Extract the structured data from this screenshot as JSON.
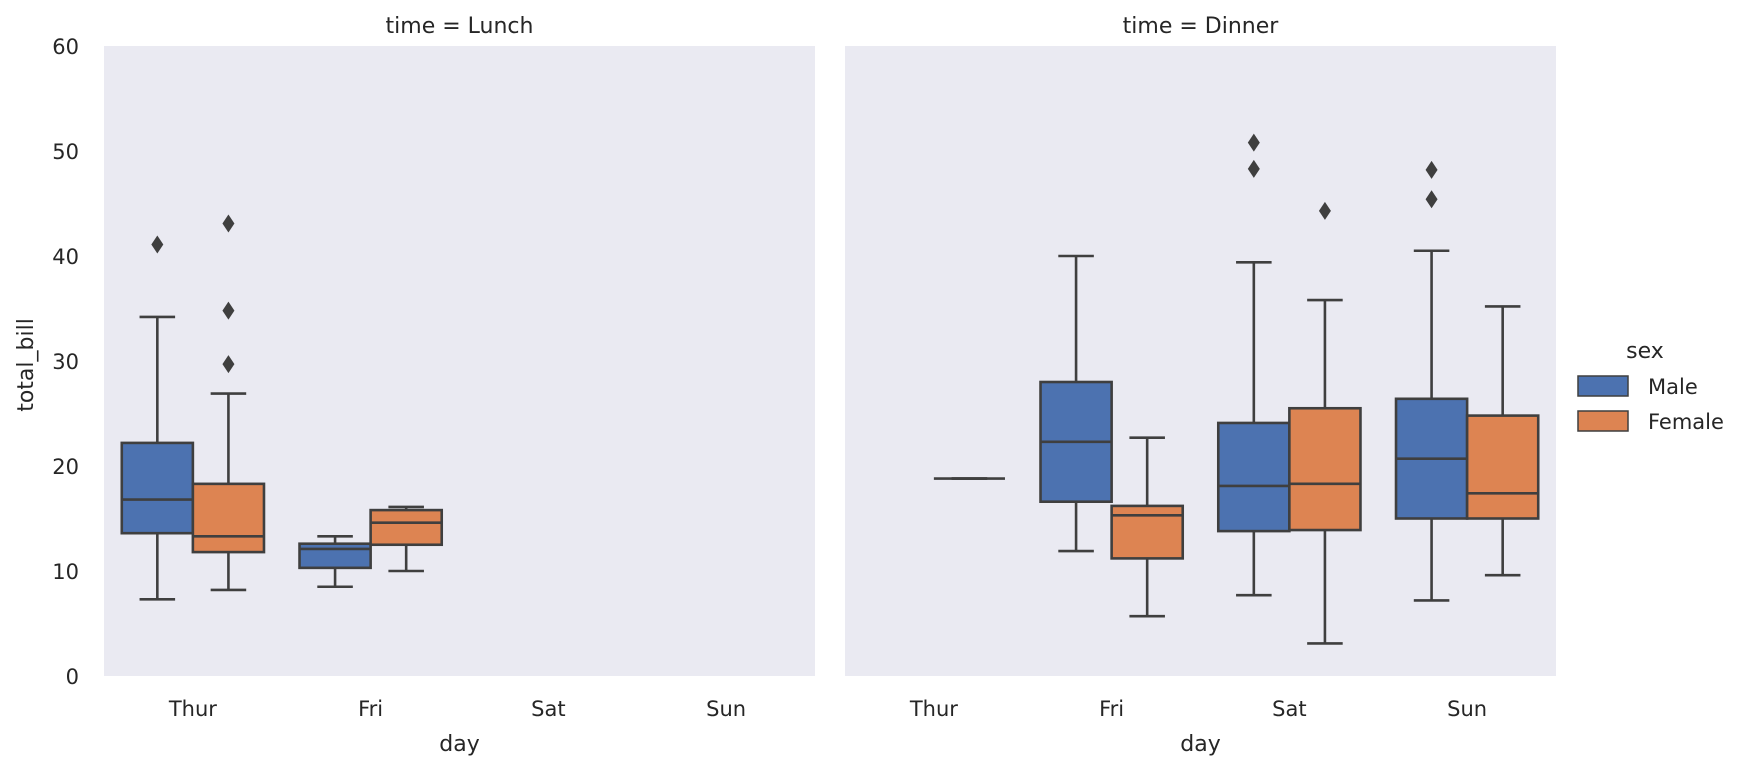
{
  "chart_data": {
    "type": "box",
    "categories": [
      "Thur",
      "Fri",
      "Sat",
      "Sun"
    ],
    "xlabel": "day",
    "ylabel": "total_bill",
    "ylim": [
      0,
      60
    ],
    "yticks": [
      0,
      10,
      20,
      30,
      40,
      50,
      60
    ],
    "grid": false,
    "legend": {
      "title": "sex",
      "placement": "center-right",
      "entries": [
        {
          "name": "Male",
          "color": "#4c72b0"
        },
        {
          "name": "Female",
          "color": "#dd8452"
        }
      ]
    },
    "panels": [
      {
        "title": "time = Lunch",
        "boxes": [
          {
            "category": "Thur",
            "series": "Male",
            "whisker_low": 7.3,
            "q1": 13.6,
            "median": 16.8,
            "q3": 22.2,
            "whisker_high": 34.2,
            "outliers": [
              41.1
            ]
          },
          {
            "category": "Thur",
            "series": "Female",
            "whisker_low": 8.2,
            "q1": 11.8,
            "median": 13.3,
            "q3": 18.3,
            "whisker_high": 26.9,
            "outliers": [
              29.7,
              34.8,
              43.1
            ]
          },
          {
            "category": "Fri",
            "series": "Male",
            "whisker_low": 8.5,
            "q1": 10.3,
            "median": 12.1,
            "q3": 12.6,
            "whisker_high": 13.3,
            "outliers": []
          },
          {
            "category": "Fri",
            "series": "Female",
            "whisker_low": 10.0,
            "q1": 12.5,
            "median": 14.6,
            "q3": 15.8,
            "whisker_high": 16.1,
            "outliers": []
          }
        ]
      },
      {
        "title": "time = Dinner",
        "boxes": [
          {
            "category": "Thur",
            "series": "Female",
            "whisker_low": 18.8,
            "q1": 18.8,
            "median": 18.8,
            "q3": 18.8,
            "whisker_high": 18.8,
            "outliers": []
          },
          {
            "category": "Fri",
            "series": "Male",
            "whisker_low": 11.9,
            "q1": 16.6,
            "median": 22.3,
            "q3": 28.0,
            "whisker_high": 40.0,
            "outliers": []
          },
          {
            "category": "Fri",
            "series": "Female",
            "whisker_low": 5.7,
            "q1": 11.2,
            "median": 15.3,
            "q3": 16.2,
            "whisker_high": 22.7,
            "outliers": []
          },
          {
            "category": "Sat",
            "series": "Male",
            "whisker_low": 7.7,
            "q1": 13.8,
            "median": 18.1,
            "q3": 24.1,
            "whisker_high": 39.4,
            "outliers": [
              48.3,
              50.8
            ]
          },
          {
            "category": "Sat",
            "series": "Female",
            "whisker_low": 3.1,
            "q1": 13.9,
            "median": 18.3,
            "q3": 25.5,
            "whisker_high": 35.8,
            "outliers": [
              44.3
            ]
          },
          {
            "category": "Sun",
            "series": "Male",
            "whisker_low": 7.2,
            "q1": 15.0,
            "median": 20.7,
            "q3": 26.4,
            "whisker_high": 40.5,
            "outliers": [
              45.4,
              48.2
            ]
          },
          {
            "category": "Sun",
            "series": "Female",
            "whisker_low": 9.6,
            "q1": 15.0,
            "median": 17.4,
            "q3": 24.8,
            "whisker_high": 35.2,
            "outliers": []
          }
        ]
      }
    ]
  }
}
